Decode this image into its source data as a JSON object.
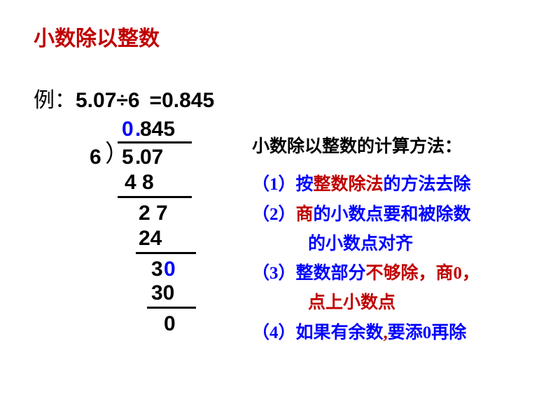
{
  "title": "小数除以整数",
  "example": {
    "label": "例：",
    "expr": "5.07÷6",
    "eq": "=0.845"
  },
  "longdiv": {
    "quotient_0": "0",
    "quotient_dot": ".",
    "quotient_845": "845",
    "divisor": "6",
    "paren": "）",
    "dividend_5": "5",
    "dividend_dot": ".",
    "dividend_07": "07",
    "s48": "4 8",
    "s27": "2 7",
    "s24": "24",
    "s3": "3",
    "s0a": "0",
    "s30": "30",
    "s0fin": "0"
  },
  "rules": {
    "heading": "小数除以整数的计算方法：",
    "r1_a": "（1）按",
    "r1_b": "整数除法",
    "r1_c": "的方法去除",
    "r2_a": "（2）",
    "r2_b": "商",
    "r2_c": "的小数点要和被除数",
    "r2_d": "的小数点对齐",
    "r3_a": "（3）整数部分",
    "r3_b": "不够除，商0，",
    "r3_c": "点上小数点",
    "r4_a": "（4）如果有余数",
    "r4_b": ",",
    "r4_c": "要添0再除"
  },
  "colors": {
    "red": "#c00000",
    "blue": "#0000ff",
    "black": "#000000",
    "bg": "#ffffff"
  }
}
